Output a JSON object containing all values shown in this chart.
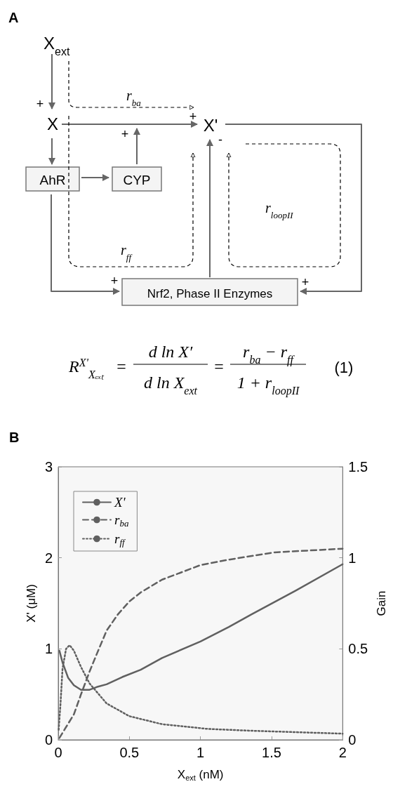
{
  "chart_data": [
    {
      "type": "other",
      "title": "A",
      "annotations": [
        "X$_{ext}$",
        "X",
        "X'",
        "AhR",
        "CYP",
        "Nrf2, Phase II Enzymes",
        "r$_{ba}$",
        "r$_{ff}$",
        "r$_{loopII}$",
        "+",
        "+",
        "+",
        "+",
        "+",
        "-",
        "R$^{X'}$$_{Xₑₓₜ}$",
        "=",
        "d ln X′",
        "d ln X$_{ext}$",
        "=",
        "r$_{ba}$ − r$_{ff}$",
        "1 + r$_{loopII}$",
        "(1)"
      ]
    },
    {
      "type": "line",
      "title": "B",
      "xlabel": "X$_{ext}$ (nM)",
      "ylabel": "X' (μM)",
      "y2label": "Gain",
      "xlim": [
        0,
        2
      ],
      "xticks": [
        0,
        0.5,
        1,
        1.5,
        2
      ],
      "ylim": [
        0,
        3
      ],
      "yticks": [
        0,
        1,
        2,
        3
      ],
      "y2lim": [
        0,
        1.5
      ],
      "y2ticks": [
        0,
        0.5,
        1,
        1.5
      ],
      "grid": false,
      "legend": "top left",
      "marker": "none",
      "series": [
        {
          "name": "X'",
          "color": "#606060",
          "line_style": "solid",
          "axis": "y",
          "x": [
            0.008,
            0.03,
            0.07,
            0.11,
            0.16,
            0.22,
            0.27,
            0.34,
            0.45,
            0.58,
            0.73,
            1.0,
            1.2,
            1.36,
            1.67,
            2.0
          ],
          "values": [
            0.98,
            0.85,
            0.68,
            0.6,
            0.55,
            0.55,
            0.58,
            0.61,
            0.69,
            0.77,
            0.9,
            1.08,
            1.24,
            1.38,
            1.64,
            1.93
          ]
        },
        {
          "name": "r$_{ba}$",
          "color": "#606060",
          "line_style": "dashed",
          "axis": "y2",
          "x": [
            0.008,
            0.047,
            0.11,
            0.16,
            0.22,
            0.27,
            0.34,
            0.42,
            0.5,
            0.58,
            0.73,
            1.0,
            1.2,
            1.52,
            2.0
          ],
          "values": [
            0.01,
            0.06,
            0.14,
            0.25,
            0.375,
            0.47,
            0.6,
            0.69,
            0.76,
            0.81,
            0.88,
            0.96,
            0.99,
            1.03,
            1.05
          ]
        },
        {
          "name": "r$_{ff}$",
          "color": "#606060",
          "line_style": "dotted",
          "axis": "y2",
          "x": [
            0.003,
            0.016,
            0.03,
            0.055,
            0.08,
            0.11,
            0.16,
            0.22,
            0.34,
            0.5,
            0.73,
            1.05,
            1.36,
            2.0
          ],
          "values": [
            0.055,
            0.2,
            0.39,
            0.5,
            0.52,
            0.49,
            0.4,
            0.31,
            0.2,
            0.13,
            0.086,
            0.06,
            0.05,
            0.034
          ]
        }
      ]
    }
  ]
}
